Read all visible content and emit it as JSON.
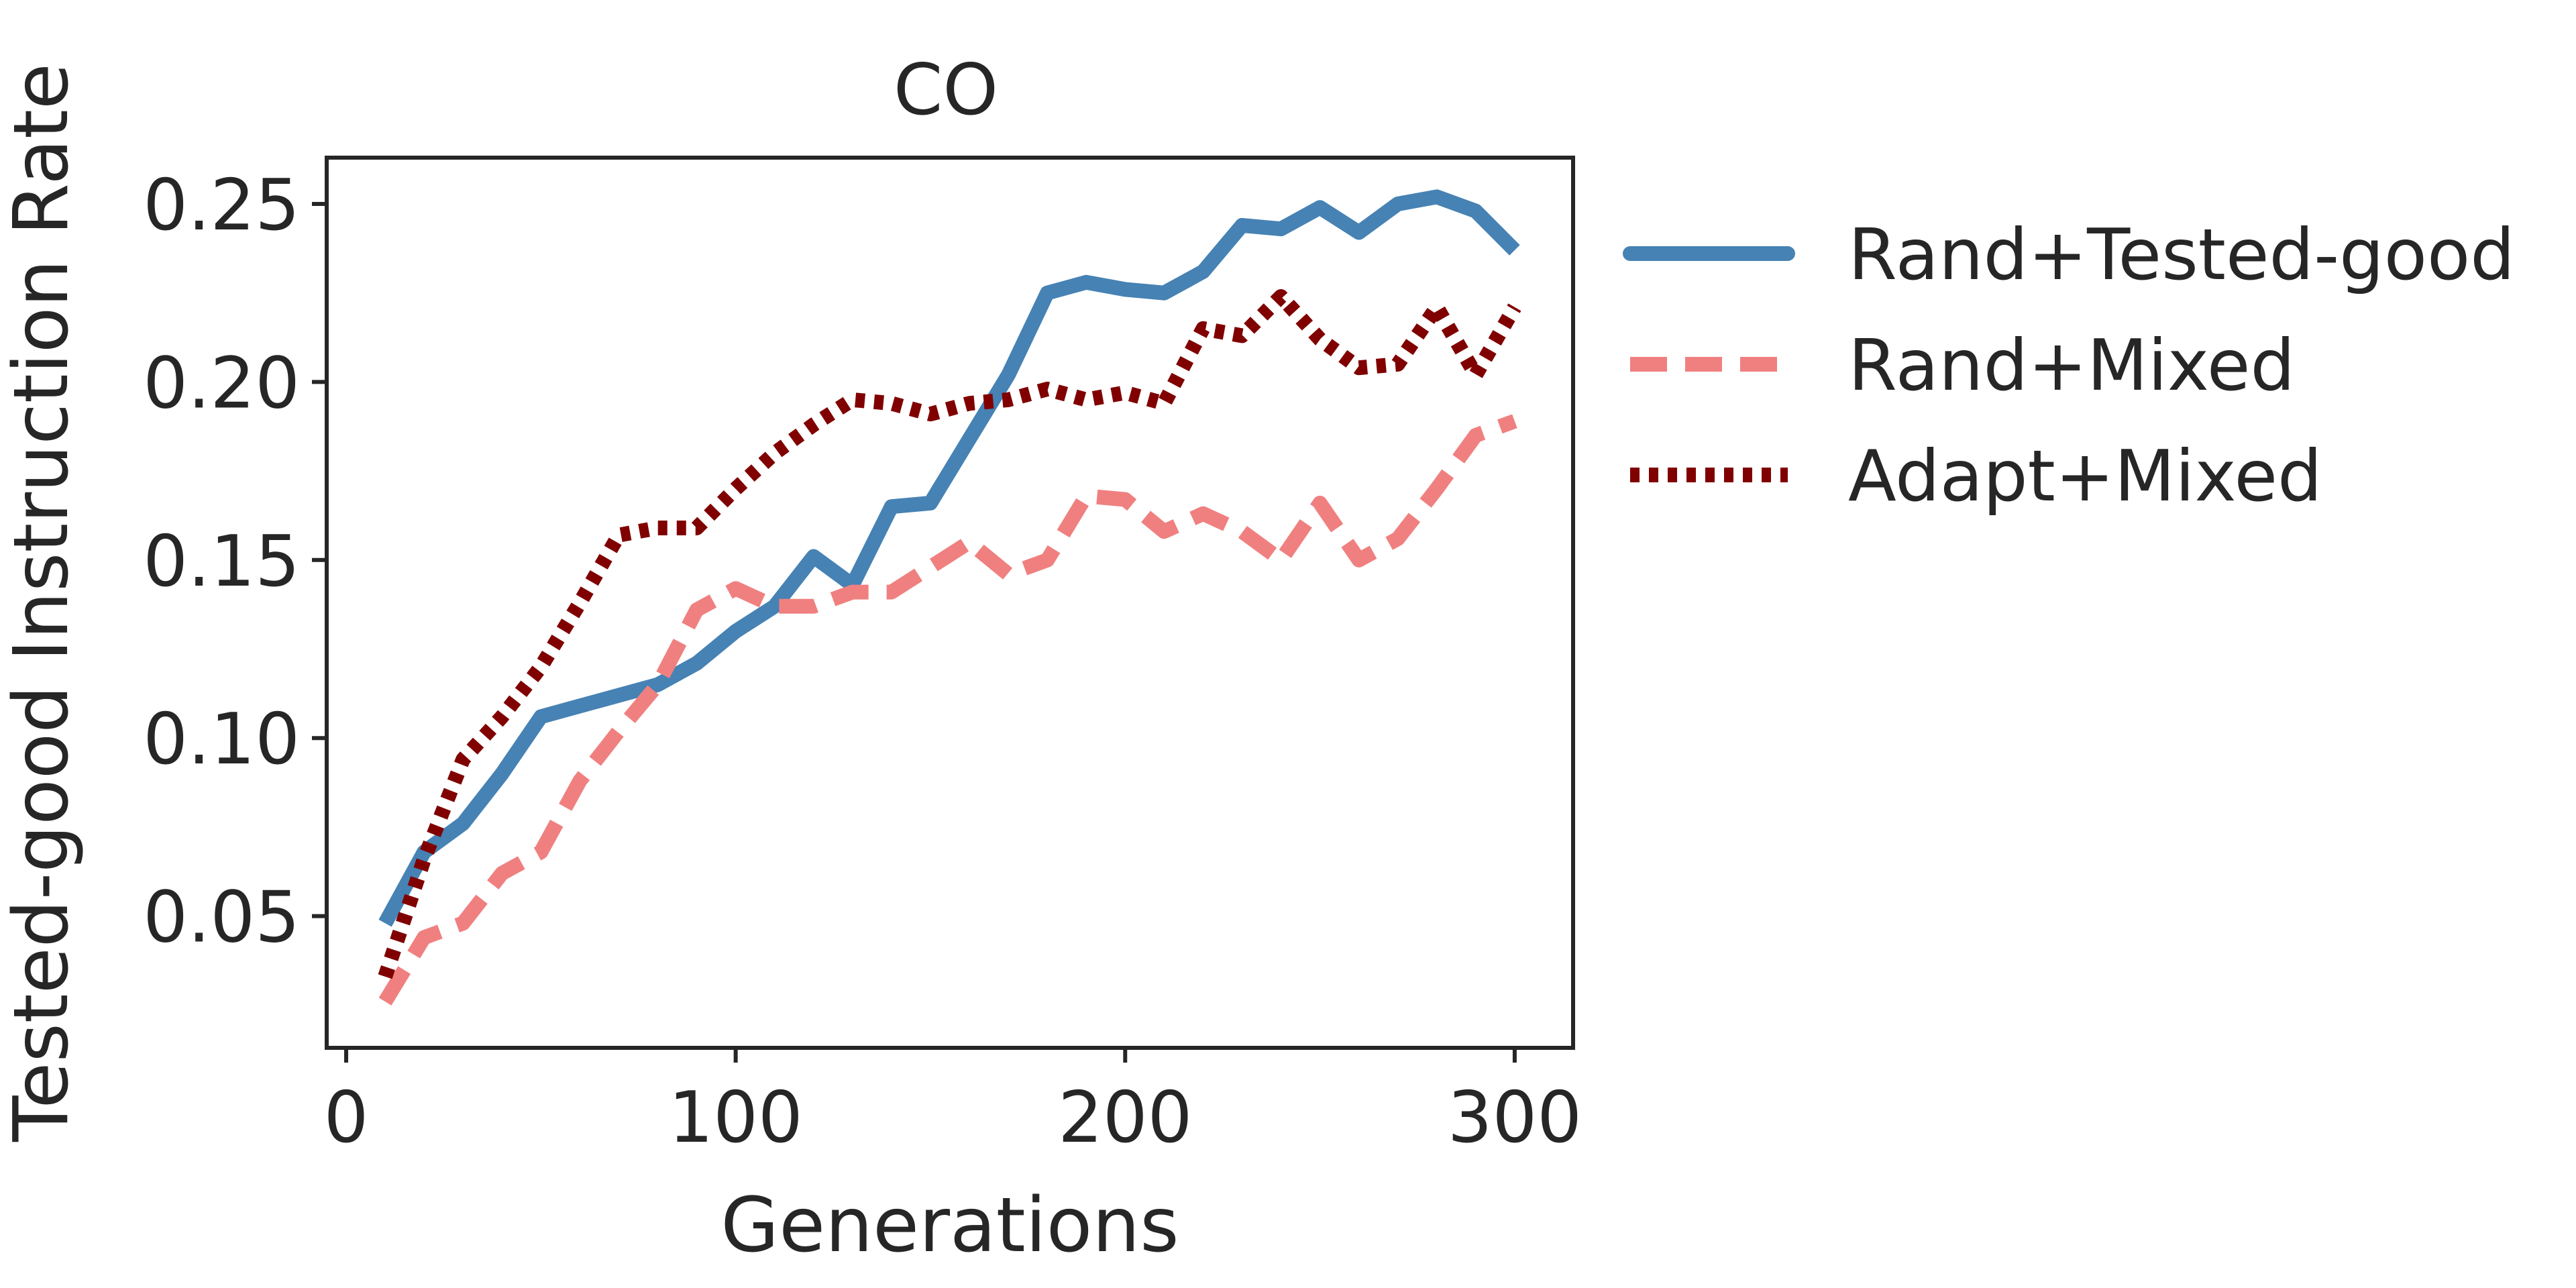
{
  "chart_data": {
    "type": "line",
    "title": "CO",
    "xlabel": "Generations",
    "ylabel": "Tested-good Instruction Rate",
    "xlim": [
      -5,
      315
    ],
    "ylim": [
      0.013,
      0.263
    ],
    "xticks": [
      0,
      100,
      200,
      300
    ],
    "xtick_labels": [
      "0",
      "100",
      "200",
      "300"
    ],
    "yticks": [
      0.05,
      0.1,
      0.15,
      0.2,
      0.25
    ],
    "ytick_labels": [
      "0.05",
      "0.10",
      "0.15",
      "0.20",
      "0.25"
    ],
    "grid": false,
    "legend_position": "outside-right",
    "x": [
      10,
      20,
      30,
      40,
      50,
      60,
      70,
      80,
      90,
      100,
      110,
      120,
      130,
      140,
      150,
      160,
      170,
      180,
      190,
      200,
      210,
      220,
      230,
      240,
      250,
      260,
      270,
      280,
      290,
      300
    ],
    "series": [
      {
        "name": "Rand+Tested-good",
        "color": "#4682b4",
        "style": "solid",
        "values": [
          0.048,
          0.068,
          0.076,
          0.09,
          0.106,
          0.109,
          0.112,
          0.115,
          0.121,
          0.13,
          0.137,
          0.151,
          0.143,
          0.165,
          0.166,
          0.184,
          0.202,
          0.225,
          0.228,
          0.226,
          0.225,
          0.231,
          0.244,
          0.243,
          0.249,
          0.242,
          0.25,
          0.252,
          0.248,
          0.237
        ]
      },
      {
        "name": "Rand+Mixed",
        "color": "#f08080",
        "style": "dashed",
        "values": [
          0.026,
          0.044,
          0.048,
          0.062,
          0.068,
          0.088,
          0.102,
          0.115,
          0.136,
          0.142,
          0.137,
          0.137,
          0.141,
          0.141,
          0.148,
          0.155,
          0.146,
          0.15,
          0.168,
          0.167,
          0.158,
          0.163,
          0.158,
          0.15,
          0.166,
          0.15,
          0.156,
          0.17,
          0.185,
          0.189
        ]
      },
      {
        "name": "Adapt+Mixed",
        "color": "#800000",
        "style": "dotted",
        "values": [
          0.033,
          0.066,
          0.094,
          0.106,
          0.12,
          0.138,
          0.157,
          0.159,
          0.159,
          0.17,
          0.18,
          0.188,
          0.195,
          0.194,
          0.191,
          0.194,
          0.195,
          0.198,
          0.195,
          0.197,
          0.194,
          0.215,
          0.213,
          0.224,
          0.212,
          0.204,
          0.205,
          0.221,
          0.202,
          0.221
        ]
      }
    ]
  }
}
